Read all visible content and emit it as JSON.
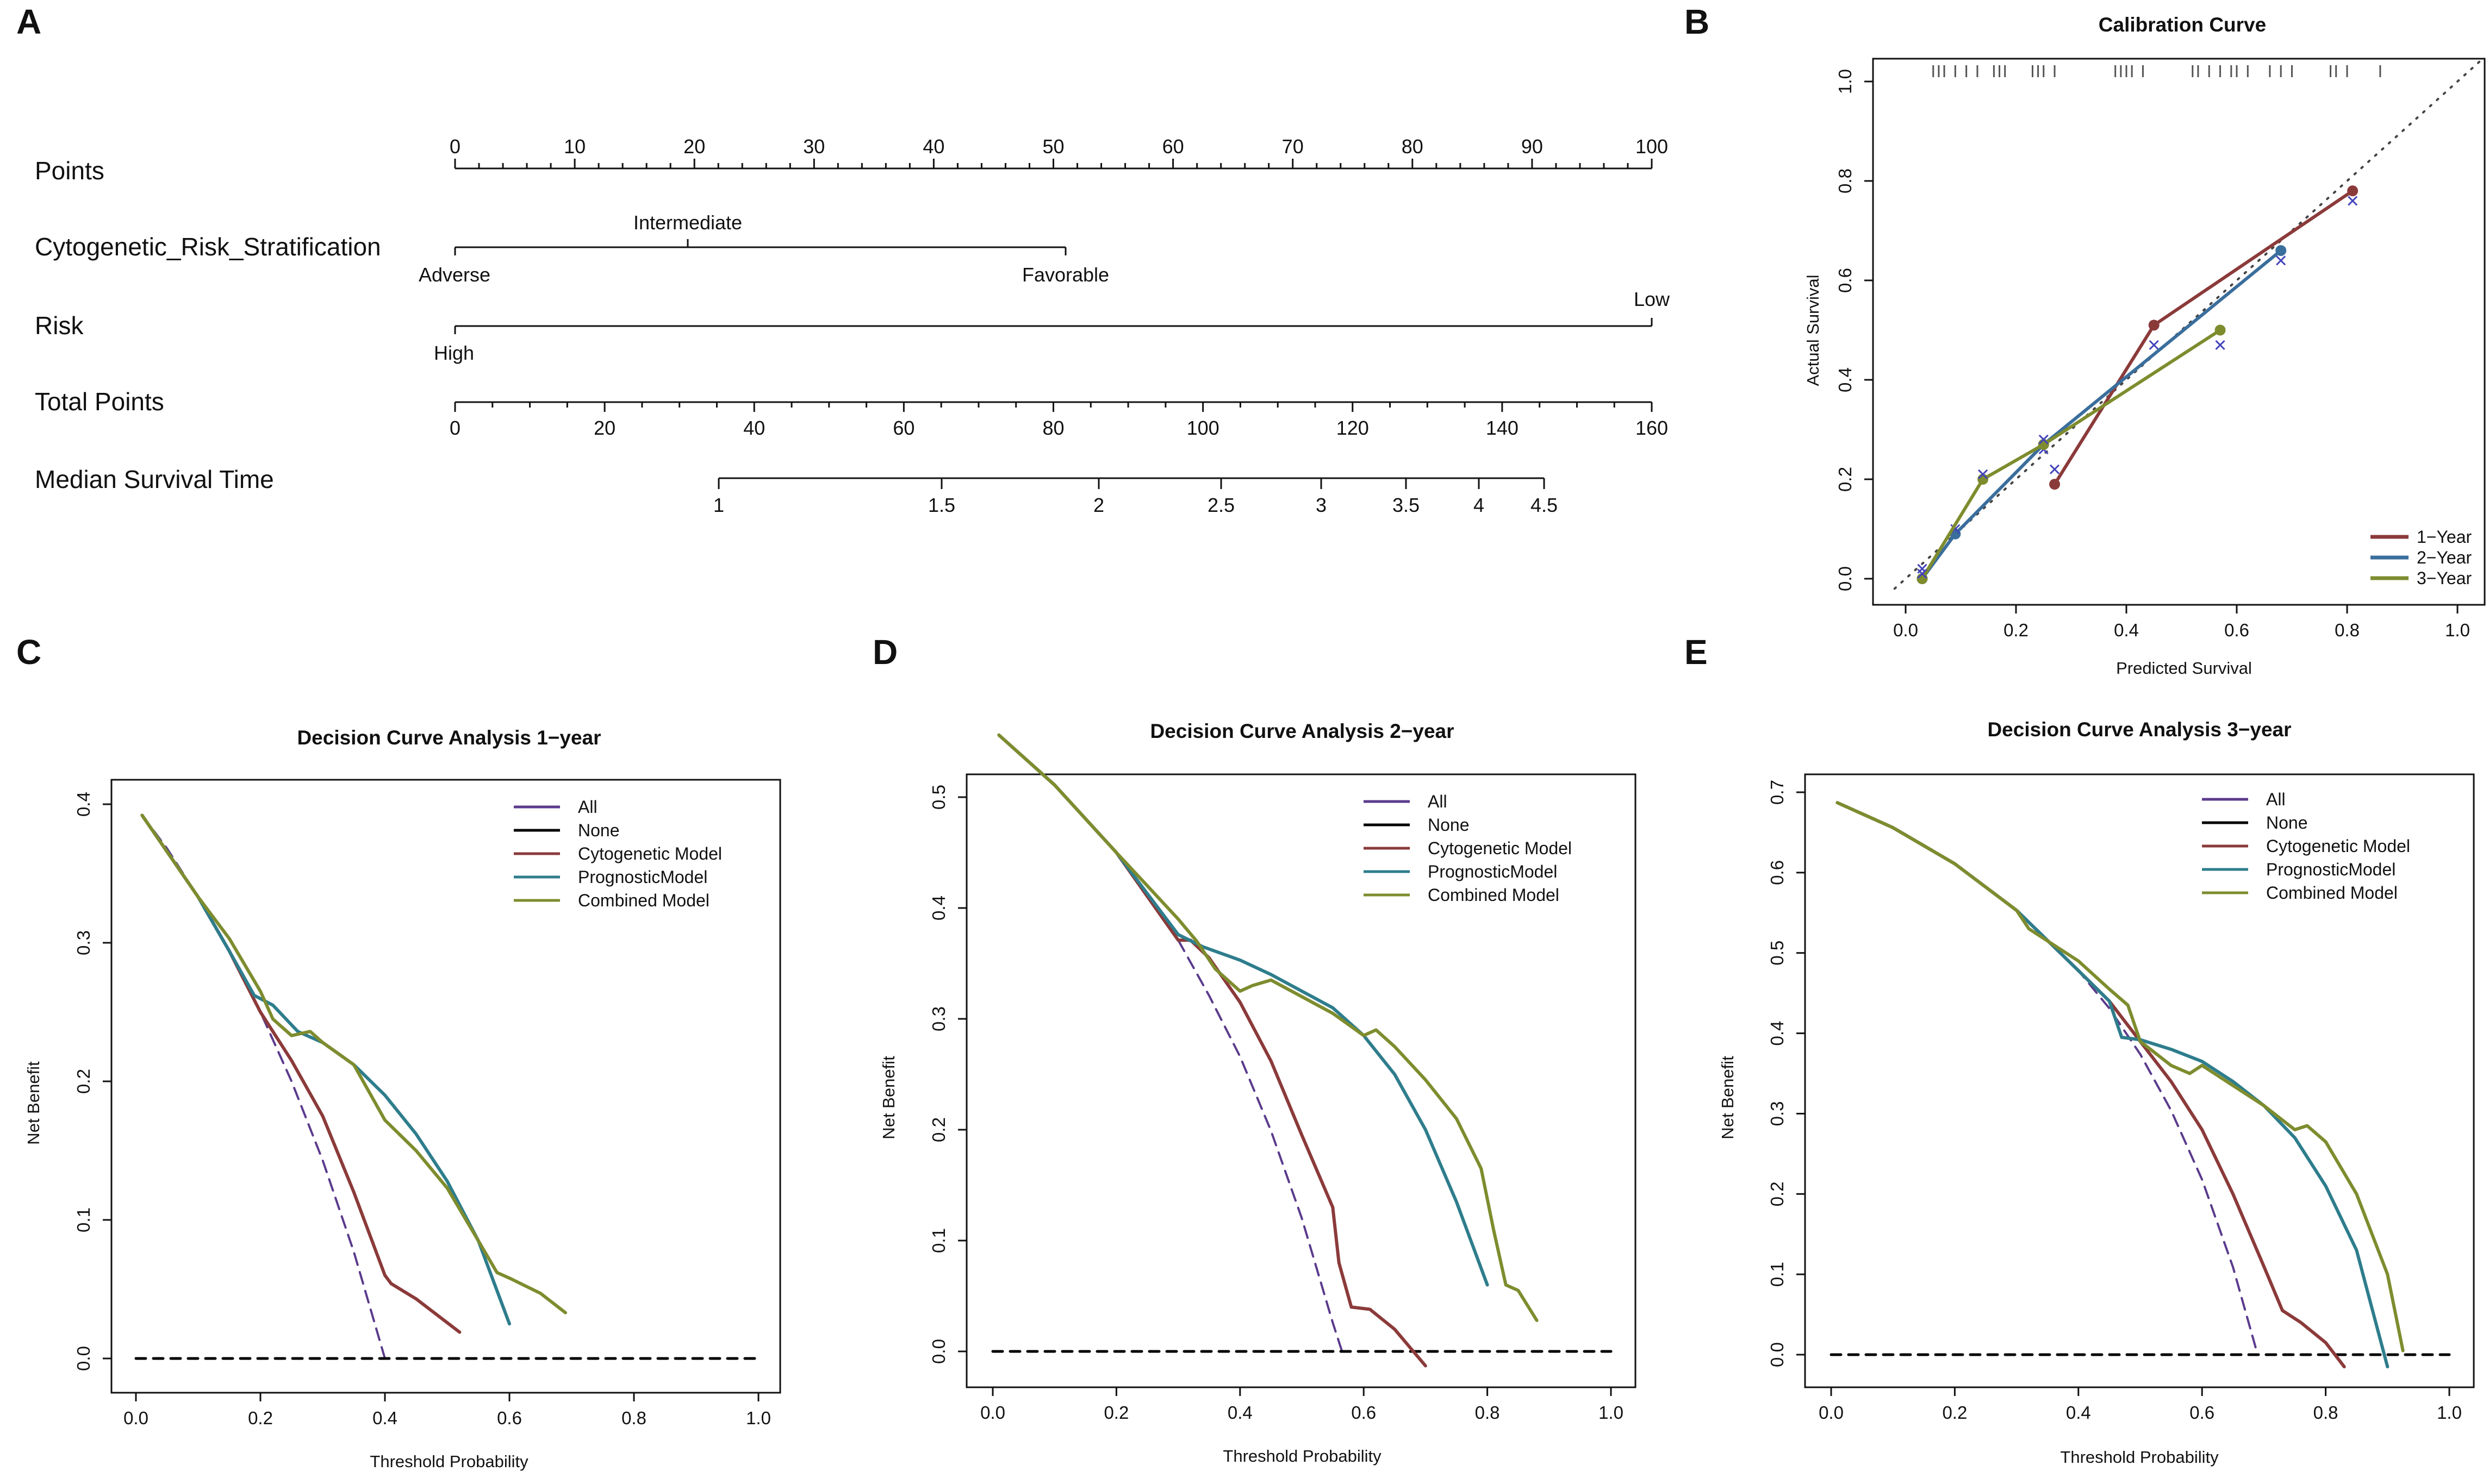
{
  "colors": {
    "cytogenetic": "#8B3A3A",
    "prognostic": "#2E7D8C",
    "combined": "#7E8C2E",
    "all": "#5B3B8C",
    "none": "#000000",
    "year1": "#8B3A3A",
    "year2": "#3A6E9C",
    "year3": "#7E8C2E",
    "cross": "#4444BB",
    "rug": "#555555"
  },
  "panels": {
    "A": "A",
    "B": "B",
    "C": "C",
    "D": "D",
    "E": "E"
  },
  "nomogram": {
    "rows": {
      "points": "Points",
      "cytogenetic": "Cytogenetic_Risk_Stratification",
      "risk": "Risk",
      "total": "Total Points",
      "median": "Median Survival Time"
    },
    "cyto_labels": {
      "adverse": "Adverse",
      "intermediate": "Intermediate",
      "favorable": "Favorable"
    },
    "risk_labels": {
      "high": "High",
      "low": "Low"
    },
    "points_ticks": [
      "0",
      "10",
      "20",
      "30",
      "40",
      "50",
      "60",
      "70",
      "80",
      "90",
      "100"
    ],
    "total_ticks": [
      "0",
      "20",
      "40",
      "60",
      "80",
      "100",
      "120",
      "140",
      "160"
    ],
    "median_ticks": [
      "1",
      "1.5",
      "2",
      "2.5",
      "3",
      "3.5",
      "4",
      "4.5"
    ]
  },
  "chart_data": [
    {
      "id": "B",
      "type": "line",
      "title": "Calibration Curve",
      "xlabel": "Predicted Survival",
      "ylabel": "Actual Survival",
      "xlim": [
        0,
        1
      ],
      "ylim": [
        0,
        1
      ],
      "x_ticks": [
        "0.0",
        "0.2",
        "0.4",
        "0.6",
        "0.8",
        "1.0"
      ],
      "y_ticks": [
        "0.0",
        "0.2",
        "0.4",
        "0.6",
        "0.8",
        "1.0"
      ],
      "legend_position": "bottom-right",
      "series": [
        {
          "name": "1−Year",
          "x": [
            0.27,
            0.45,
            0.81
          ],
          "y": [
            0.19,
            0.51,
            0.78
          ],
          "crosses_y": [
            0.22,
            0.47,
            0.76
          ]
        },
        {
          "name": "2−Year",
          "x": [
            0.03,
            0.09,
            0.25,
            0.68
          ],
          "y": [
            0.0,
            0.09,
            0.27,
            0.66
          ],
          "crosses_y": [
            0.02,
            0.1,
            0.26,
            0.64
          ]
        },
        {
          "name": "3−Year",
          "x": [
            0.03,
            0.14,
            0.25,
            0.57
          ],
          "y": [
            0.0,
            0.2,
            0.27,
            0.5
          ],
          "crosses_y": [
            0.01,
            0.21,
            0.28,
            0.47
          ]
        }
      ],
      "rug": [
        0.05,
        0.06,
        0.07,
        0.09,
        0.11,
        0.13,
        0.16,
        0.17,
        0.18,
        0.23,
        0.24,
        0.25,
        0.27,
        0.38,
        0.39,
        0.4,
        0.41,
        0.43,
        0.52,
        0.53,
        0.55,
        0.57,
        0.59,
        0.6,
        0.62,
        0.66,
        0.68,
        0.7,
        0.77,
        0.78,
        0.8,
        0.86
      ]
    },
    {
      "id": "C",
      "type": "line",
      "title": "Decision Curve Analysis 1−year",
      "xlabel": "Threshold Probability",
      "ylabel": "Net Benefit",
      "xlim": [
        0,
        1
      ],
      "ylim": [
        0,
        0.4
      ],
      "x_ticks": [
        "0.0",
        "0.2",
        "0.4",
        "0.6",
        "0.8",
        "1.0"
      ],
      "y_ticks": [
        "0.0",
        "0.1",
        "0.2",
        "0.3",
        "0.4"
      ],
      "legend_position": "top-right",
      "legend": [
        "All",
        "None",
        "Cytogenetic Model",
        "PrognosticModel",
        "Combined Model"
      ],
      "series": [
        {
          "name": "All",
          "x": [
            0.01,
            0.05,
            0.1,
            0.15,
            0.2,
            0.25,
            0.3,
            0.35,
            0.4
          ],
          "y": [
            0.392,
            0.368,
            0.333,
            0.294,
            0.25,
            0.2,
            0.143,
            0.077,
            0.0
          ]
        },
        {
          "name": "None",
          "x": [
            0.0,
            1.0
          ],
          "y": [
            0,
            0
          ]
        },
        {
          "name": "Cytogenetic Model",
          "x": [
            0.01,
            0.1,
            0.15,
            0.2,
            0.25,
            0.3,
            0.35,
            0.4,
            0.41,
            0.45,
            0.52
          ],
          "y": [
            0.392,
            0.333,
            0.294,
            0.25,
            0.215,
            0.175,
            0.12,
            0.06,
            0.054,
            0.043,
            0.019
          ]
        },
        {
          "name": "PrognosticModel",
          "x": [
            0.01,
            0.1,
            0.15,
            0.19,
            0.22,
            0.26,
            0.3,
            0.35,
            0.4,
            0.45,
            0.5,
            0.55,
            0.6
          ],
          "y": [
            0.392,
            0.333,
            0.294,
            0.262,
            0.255,
            0.236,
            0.228,
            0.212,
            0.19,
            0.162,
            0.128,
            0.085,
            0.025
          ]
        },
        {
          "name": "Combined Model",
          "x": [
            0.01,
            0.1,
            0.15,
            0.2,
            0.22,
            0.25,
            0.28,
            0.3,
            0.35,
            0.4,
            0.45,
            0.5,
            0.55,
            0.58,
            0.6,
            0.65,
            0.69
          ],
          "y": [
            0.392,
            0.333,
            0.303,
            0.265,
            0.245,
            0.233,
            0.236,
            0.228,
            0.212,
            0.172,
            0.15,
            0.123,
            0.085,
            0.062,
            0.058,
            0.047,
            0.033
          ]
        }
      ]
    },
    {
      "id": "D",
      "type": "line",
      "title": "Decision Curve Analysis 2−year",
      "xlabel": "Threshold Probability",
      "ylabel": "Net Benefit",
      "xlim": [
        0,
        1
      ],
      "ylim": [
        0,
        0.5
      ],
      "x_ticks": [
        "0.0",
        "0.2",
        "0.4",
        "0.6",
        "0.8",
        "1.0"
      ],
      "y_ticks": [
        "0.0",
        "0.1",
        "0.2",
        "0.3",
        "0.4",
        "0.5"
      ],
      "legend_position": "top-right",
      "legend": [
        "All",
        "None",
        "Cytogenetic Model",
        "PrognosticModel",
        "Combined Model"
      ],
      "series": [
        {
          "name": "All",
          "x": [
            0.01,
            0.1,
            0.2,
            0.3,
            0.35,
            0.4,
            0.45,
            0.5,
            0.55,
            0.565
          ],
          "y": [
            0.556,
            0.511,
            0.45,
            0.371,
            0.321,
            0.266,
            0.199,
            0.12,
            0.026,
            0.0
          ]
        },
        {
          "name": "None",
          "x": [
            0.0,
            1.0
          ],
          "y": [
            0,
            0
          ]
        },
        {
          "name": "Cytogenetic Model",
          "x": [
            0.01,
            0.1,
            0.2,
            0.3,
            0.32,
            0.35,
            0.4,
            0.45,
            0.5,
            0.55,
            0.56,
            0.58,
            0.61,
            0.65,
            0.7
          ],
          "y": [
            0.556,
            0.511,
            0.45,
            0.371,
            0.371,
            0.355,
            0.315,
            0.262,
            0.195,
            0.13,
            0.08,
            0.04,
            0.038,
            0.02,
            -0.013
          ]
        },
        {
          "name": "PrognosticModel",
          "x": [
            0.01,
            0.1,
            0.2,
            0.3,
            0.34,
            0.4,
            0.45,
            0.5,
            0.55,
            0.6,
            0.65,
            0.7,
            0.75,
            0.8
          ],
          "y": [
            0.556,
            0.511,
            0.45,
            0.376,
            0.365,
            0.353,
            0.34,
            0.325,
            0.31,
            0.285,
            0.25,
            0.2,
            0.135,
            0.06
          ]
        },
        {
          "name": "Combined Model",
          "x": [
            0.01,
            0.1,
            0.2,
            0.25,
            0.3,
            0.33,
            0.36,
            0.4,
            0.42,
            0.45,
            0.5,
            0.55,
            0.6,
            0.62,
            0.65,
            0.7,
            0.75,
            0.79,
            0.81,
            0.83,
            0.85,
            0.88
          ],
          "y": [
            0.556,
            0.511,
            0.45,
            0.42,
            0.39,
            0.37,
            0.345,
            0.325,
            0.33,
            0.335,
            0.32,
            0.305,
            0.285,
            0.29,
            0.275,
            0.245,
            0.21,
            0.165,
            0.11,
            0.06,
            0.055,
            0.028
          ]
        }
      ]
    },
    {
      "id": "E",
      "type": "line",
      "title": "Decision Curve Analysis 3−year",
      "xlabel": "Threshold Probability",
      "ylabel": "Net Benefit",
      "xlim": [
        0,
        1
      ],
      "ylim": [
        0,
        0.7
      ],
      "x_ticks": [
        "0.0",
        "0.2",
        "0.4",
        "0.6",
        "0.8",
        "1.0"
      ],
      "y_ticks": [
        "0.0",
        "0.1",
        "0.2",
        "0.3",
        "0.4",
        "0.5",
        "0.6",
        "0.7"
      ],
      "legend_position": "top-right",
      "legend": [
        "All",
        "None",
        "Cytogenetic Model",
        "PrognosticModel",
        "Combined Model"
      ],
      "series": [
        {
          "name": "All",
          "x": [
            0.01,
            0.1,
            0.2,
            0.3,
            0.4,
            0.45,
            0.5,
            0.55,
            0.6,
            0.65,
            0.69
          ],
          "y": [
            0.687,
            0.656,
            0.611,
            0.553,
            0.478,
            0.431,
            0.374,
            0.304,
            0.218,
            0.109,
            0.0
          ]
        },
        {
          "name": "None",
          "x": [
            0.0,
            1.0
          ],
          "y": [
            0,
            0
          ]
        },
        {
          "name": "Cytogenetic Model",
          "x": [
            0.01,
            0.1,
            0.2,
            0.3,
            0.4,
            0.45,
            0.5,
            0.55,
            0.6,
            0.65,
            0.7,
            0.73,
            0.76,
            0.8,
            0.83
          ],
          "y": [
            0.687,
            0.656,
            0.611,
            0.553,
            0.478,
            0.44,
            0.39,
            0.34,
            0.28,
            0.2,
            0.11,
            0.055,
            0.04,
            0.015,
            -0.015
          ]
        },
        {
          "name": "PrognosticModel",
          "x": [
            0.01,
            0.1,
            0.2,
            0.3,
            0.4,
            0.45,
            0.47,
            0.5,
            0.55,
            0.6,
            0.65,
            0.7,
            0.75,
            0.8,
            0.85,
            0.9
          ],
          "y": [
            0.687,
            0.656,
            0.611,
            0.553,
            0.478,
            0.44,
            0.395,
            0.392,
            0.38,
            0.365,
            0.34,
            0.31,
            0.27,
            0.21,
            0.13,
            -0.015
          ]
        },
        {
          "name": "Combined Model",
          "x": [
            0.01,
            0.1,
            0.2,
            0.3,
            0.32,
            0.4,
            0.45,
            0.48,
            0.5,
            0.55,
            0.58,
            0.6,
            0.65,
            0.7,
            0.75,
            0.77,
            0.8,
            0.85,
            0.9,
            0.925
          ],
          "y": [
            0.687,
            0.656,
            0.611,
            0.553,
            0.53,
            0.49,
            0.455,
            0.435,
            0.39,
            0.36,
            0.35,
            0.36,
            0.335,
            0.31,
            0.28,
            0.285,
            0.265,
            0.2,
            0.1,
            0.005
          ]
        }
      ]
    }
  ]
}
